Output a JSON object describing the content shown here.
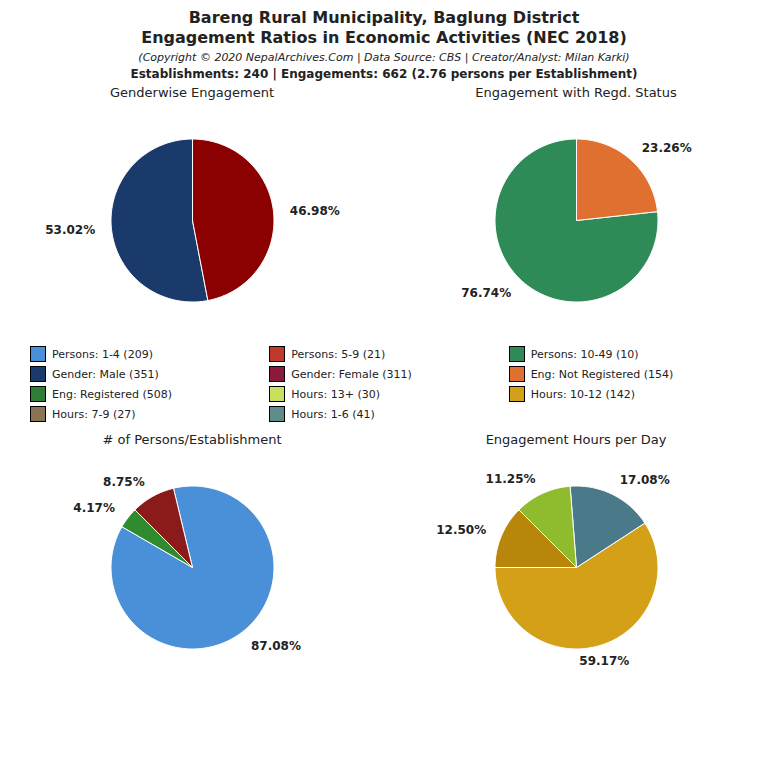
{
  "title": [
    "Bareng Rural Municipality, Baglung District",
    "Engagement Ratios in Economic Activities (NEC 2018)"
  ],
  "subtitle": "(Copyright © 2020 NepalArchives.Com | Data Source: CBS | Creator/Analyst: Milan Karki)",
  "annotations": [
    "Establishments: 240 | Engagements: 662 (2.76 persons per Establishment)"
  ],
  "legend_entries": [
    {
      "name": "Persons: 1-4 (209)",
      "color": "#4a90d9"
    },
    {
      "name": "Persons: 5-9 (21)",
      "color": "#c0392b"
    },
    {
      "name": "Persons: 10-49 (10)",
      "color": "#2e8b57"
    },
    {
      "name": "Gender: Male (351)",
      "color": "#1a3a6b"
    },
    {
      "name": "Gender: Female (311)",
      "color": "#8b1a3b"
    },
    {
      "name": "Eng: Not Registered (154)",
      "color": "#e07030"
    },
    {
      "name": "Eng: Registered (508)",
      "color": "#2e7d32"
    },
    {
      "name": "Hours: 13+ (30)",
      "color": "#c8e060"
    },
    {
      "name": "Hours: 10-12 (142)",
      "color": "#d4a017"
    },
    {
      "name": "Hours: 7-9 (27)",
      "color": "#8b7355"
    },
    {
      "name": "Hours: 1-6 (41)",
      "color": "#5f8b8b"
    }
  ],
  "chart_data": [
    {
      "type": "pie",
      "title": "Genderwise Engagement",
      "values": [
        53.02,
        46.98
      ],
      "colors": [
        "#1a3a6b",
        "#8b0000"
      ],
      "data_labels": true,
      "value_labels": [
        "53.02%",
        "46.98%"
      ]
    },
    {
      "type": "pie",
      "title": "Engagement with Regd. Status",
      "values": [
        76.74,
        23.26
      ],
      "colors": [
        "#2e8b57",
        "#e07030"
      ],
      "data_labels": true,
      "value_labels": [
        "76.74%",
        "23.26%"
      ]
    },
    {
      "type": "pie",
      "title": "# of Persons/Establishment",
      "values": [
        87.08,
        8.75,
        4.17
      ],
      "colors": [
        "#4a90d9",
        "#8b1a1a",
        "#2e8b2e"
      ],
      "data_labels": true,
      "value_labels": [
        "87.08%",
        "8.75%",
        "4.17%"
      ]
    },
    {
      "type": "pie",
      "title": "Engagement Hours per Day",
      "values": [
        59.17,
        17.08,
        11.25,
        12.5
      ],
      "colors": [
        "#d4a017",
        "#4a7a8a",
        "#8fbc2f",
        "#b8860b"
      ],
      "data_labels": true,
      "value_labels": [
        "59.17%",
        "17.08%",
        "11.25%",
        "12.50%"
      ]
    }
  ]
}
